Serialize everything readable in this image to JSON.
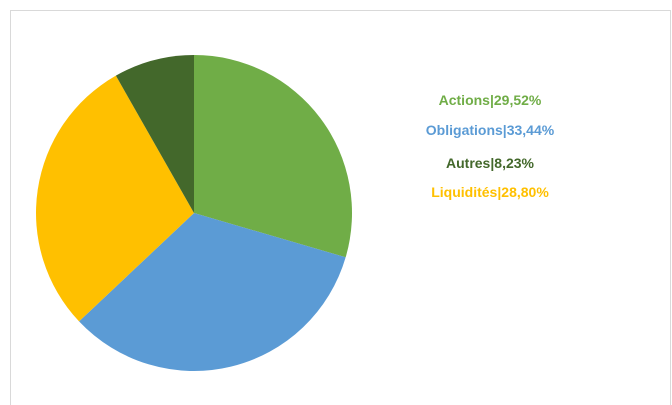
{
  "chart_data": {
    "type": "pie",
    "categories": [
      "Actions",
      "Obligations",
      "Autres",
      "Liquidités"
    ],
    "values": [
      29.52,
      33.44,
      8.23,
      28.8
    ],
    "value_labels": [
      "29,52%",
      "33,44%",
      "8,23%",
      "28,80%"
    ],
    "label_separator": "|",
    "colors": [
      "#70ad47",
      "#5b9bd5",
      "#43682b",
      "#ffc000"
    ]
  }
}
